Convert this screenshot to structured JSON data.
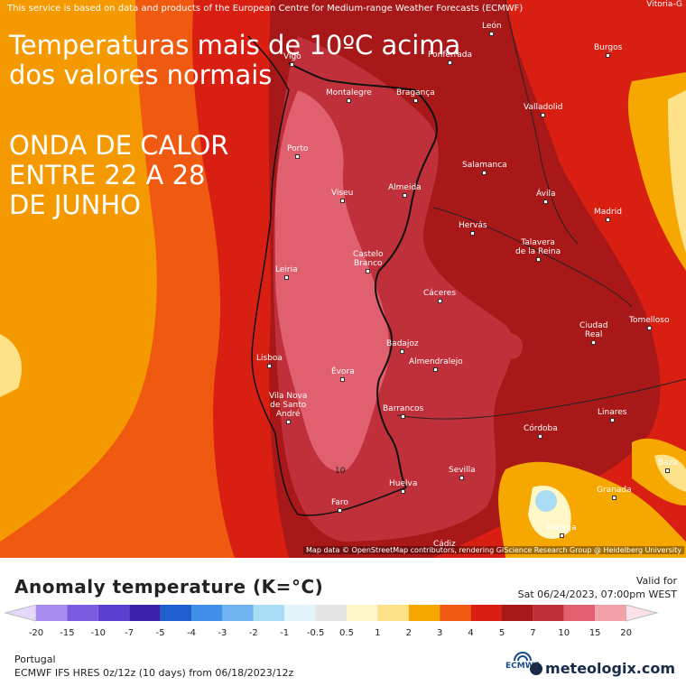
{
  "map": {
    "service_note": "This service is based on data and products of the European Centre for Medium-range Weather Forecasts (ECMWF)",
    "corner_city": "Vitoria-G",
    "headline_1_line1": "Temperaturas mais de 10ºC acima",
    "headline_1_line2": "dos valores normais",
    "headline_2_line1": "ONDA DE CALOR",
    "headline_2_line2": "ENTRE 22 A 28",
    "headline_2_line3": "DE JUNHO",
    "attribution": "Map data © OpenStreetMap contributors, rendering GIScience Research Group @ Heidelberg University",
    "contour_label": "10",
    "cities": {
      "leon": "León",
      "vigo": "Vigo",
      "ponferrada": "Ponferrada",
      "burgos": "Burgos",
      "montalegre": "Montalegre",
      "braganca": "Bragança",
      "valladolid": "Valladolid",
      "porto": "Porto",
      "salamanca": "Salamanca",
      "viseu": "Viseu",
      "almeida": "Almeida",
      "avila": "Ávila",
      "madrid": "Madrid",
      "hervas": "Hervás",
      "talavera": "Talavera\nde la Reina",
      "castelo_branco": "Castelo\nBranco",
      "leiria": "Leiria",
      "caceres": "Cáceres",
      "ciudad_real": "Ciudad\nReal",
      "tomelloso": "Tomelloso",
      "badajoz": "Badajoz",
      "lisboa": "Lisboa",
      "almendralejo": "Almendralejo",
      "evora": "Évora",
      "vila_nova": "Vila Nova\nde Santo\nAndré",
      "barrancos": "Barrancos",
      "linares": "Linares",
      "cordoba": "Córdoba",
      "sevilla": "Sevilla",
      "baza": "Baza",
      "huelva": "Huelva",
      "granada": "Granada",
      "faro": "Faro",
      "malaga": "Málaga",
      "cadiz": "Cádiz"
    }
  },
  "legend": {
    "title": "Anomaly temperature (K=°C)",
    "valid_for_label": "Valid for",
    "valid_for_value": "Sat 06/24/2023, 07:00pm WEST",
    "colors": [
      "#a98cf0",
      "#7a5ce0",
      "#5a3fd0",
      "#3a22a8",
      "#1f5fcf",
      "#3f8fe8",
      "#6fb3f0",
      "#a9dcf5",
      "#e4f4fb",
      "#e4e4e4",
      "#fff7c8",
      "#fde28a",
      "#f7a800",
      "#f05a10",
      "#d81f12",
      "#a81818",
      "#c0303a",
      "#e06070",
      "#f4a0a8"
    ],
    "ticks": [
      "-20",
      "-15",
      "-10",
      "-7",
      "-5",
      "-4",
      "-3",
      "-2",
      "-1",
      "-0.5",
      "0.5",
      "1",
      "2",
      "3",
      "4",
      "5",
      "7",
      "10",
      "15",
      "20"
    ],
    "region": "Portugal",
    "model": "ECMWF IFS HRES 0z/12z (10 days) from 06/18/2023/12z",
    "ecmwf_label": "ECMWF",
    "brand": "meteologix.com"
  }
}
